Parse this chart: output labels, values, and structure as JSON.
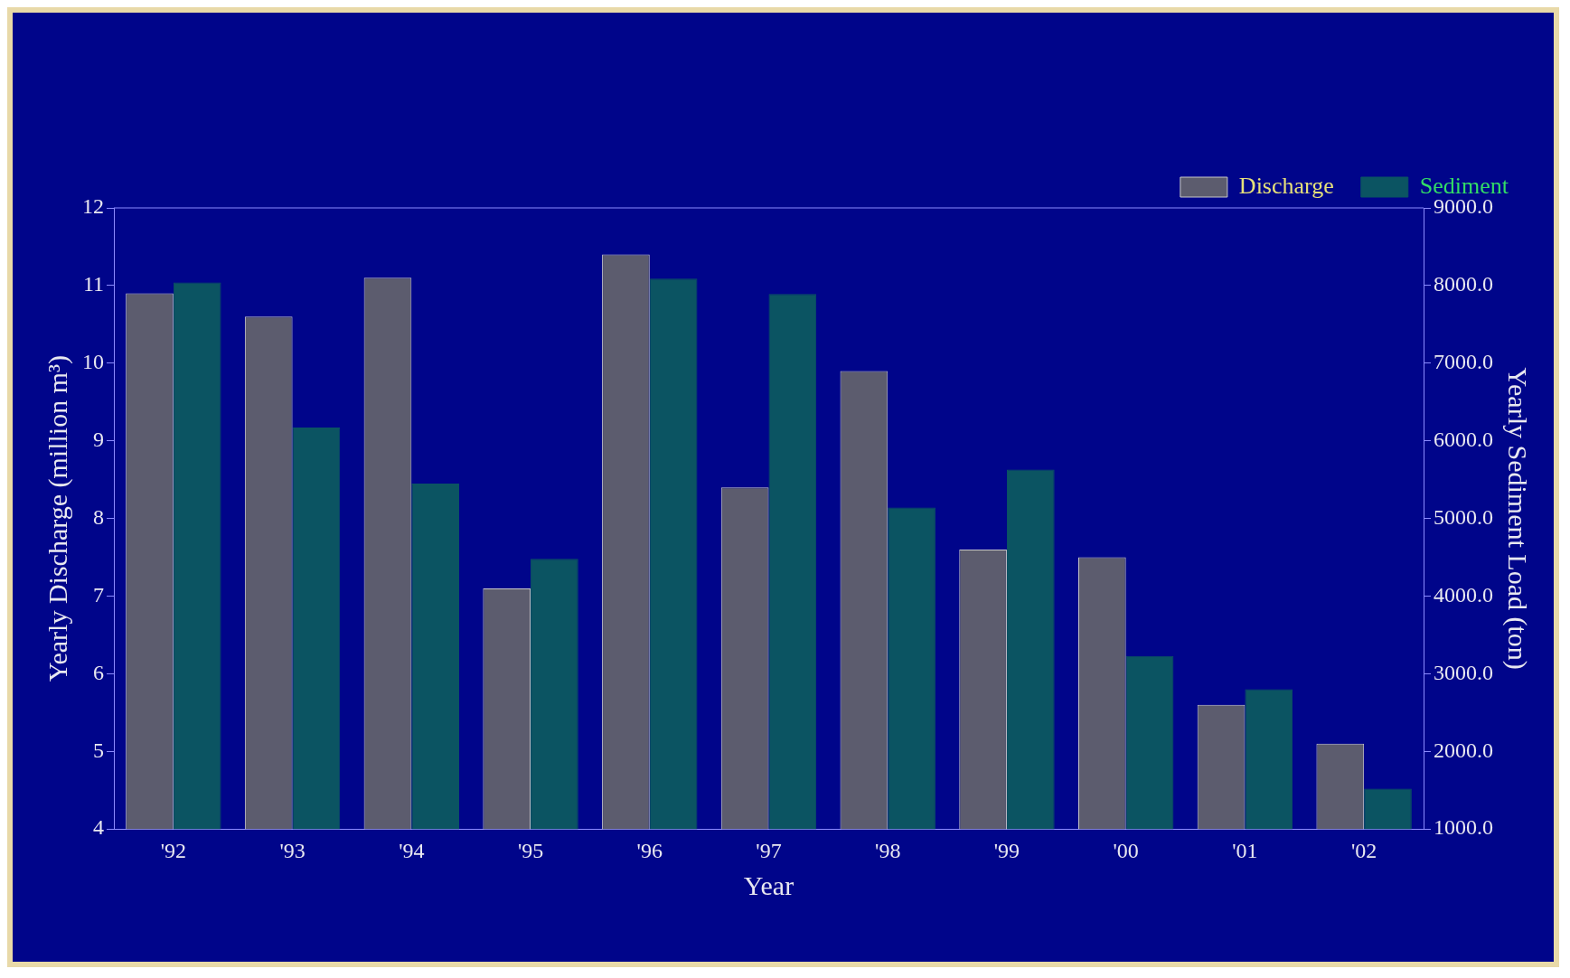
{
  "chart_data": {
    "type": "bar",
    "xlabel": "Year",
    "ylabel": "Yearly Discharge (million m³)",
    "y2label": "Yearly Sediment Load (ton)",
    "categories": [
      "'92",
      "'93",
      "'94",
      "'95",
      "'96",
      "'97",
      "'98",
      "'99",
      "'00",
      "'01",
      "'02"
    ],
    "series": [
      {
        "name": "Discharge",
        "color": "#5c5c6e",
        "values": [
          10.9,
          10.6,
          11.1,
          7.1,
          11.4,
          8.4,
          9.9,
          7.6,
          7.5,
          5.6,
          5.1
        ]
      },
      {
        "name": "Sediment",
        "color": "#0b5462",
        "axis": "y2",
        "values": [
          8040,
          6170,
          5450,
          4480,
          8090,
          7890,
          5140,
          5630,
          3230,
          2800,
          1520
        ]
      }
    ],
    "ylim": [
      4,
      12
    ],
    "yticks": [
      4,
      5,
      6,
      7,
      8,
      9,
      10,
      11,
      12
    ],
    "y2lim": [
      1000,
      9000
    ],
    "y2ticks": [
      {
        "value": 1000,
        "label": "1000.0"
      },
      {
        "value": 2000,
        "label": "2000.0"
      },
      {
        "value": 3000,
        "label": "3000.0"
      },
      {
        "value": 4000,
        "label": "4000.0"
      },
      {
        "value": 5000,
        "label": "5000.0"
      },
      {
        "value": 6000,
        "label": "6000.0"
      },
      {
        "value": 7000,
        "label": "7000.0"
      },
      {
        "value": 8000,
        "label": "8000.0"
      },
      {
        "value": 9000,
        "label": "9000.0"
      }
    ],
    "grid": false,
    "legend": "top right"
  }
}
